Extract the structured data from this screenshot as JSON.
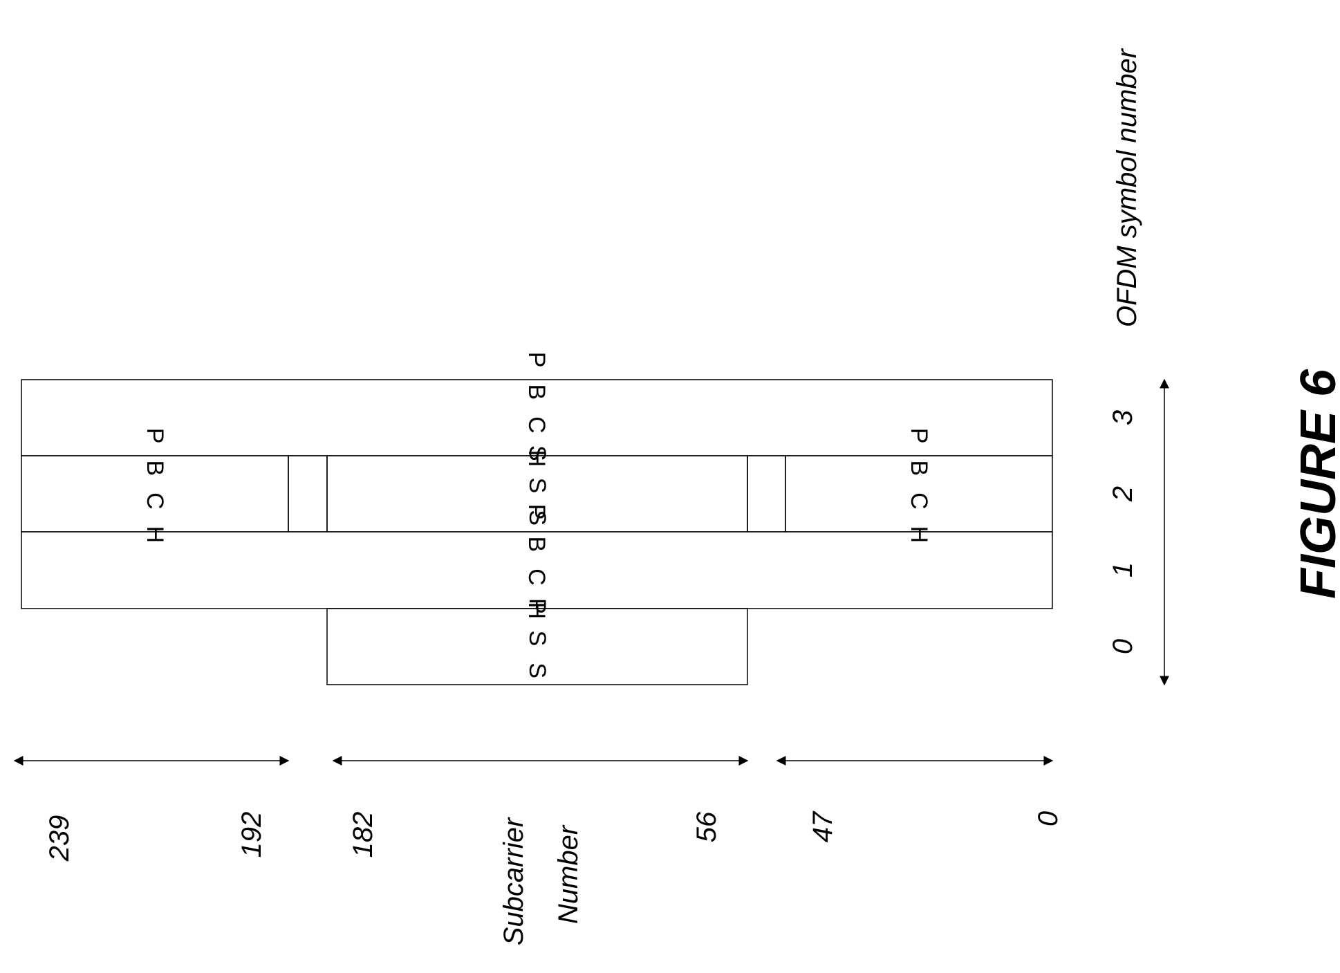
{
  "figure": {
    "title": "FIGURE 6"
  },
  "axes": {
    "ofdm_label": "OFDM symbol number",
    "subcarrier_label_line1": "Subcarrier",
    "subcarrier_label_line2": "Number",
    "ofdm_ticks": [
      "0",
      "1",
      "2",
      "3"
    ],
    "subcarrier_ticks": [
      "239",
      "192",
      "182",
      "56",
      "47",
      "0"
    ]
  },
  "blocks": {
    "pbch": "PBCH",
    "sss": "SSS",
    "pss": "PSS"
  }
}
